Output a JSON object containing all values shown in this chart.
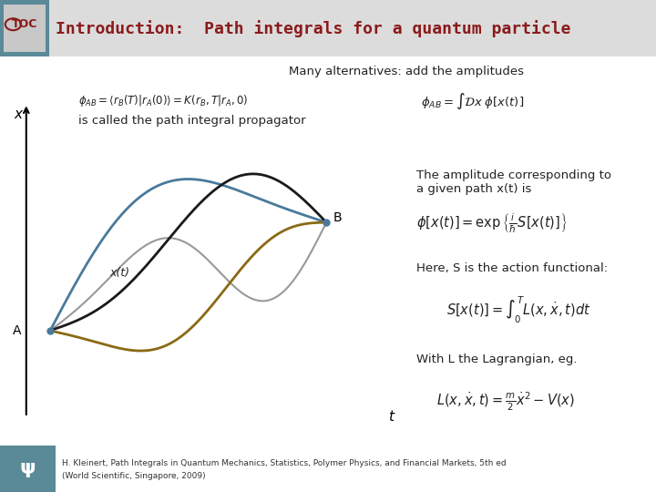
{
  "title": "Introduction:  Path integrals for a quantum particle",
  "title_color": "#8B1A1A",
  "bg_color": "#ffffff",
  "header_bar_color": "#4A7A8A",
  "header_bg_color": "#e8e8e8",
  "slide_bg": "#f0f0f0",
  "text_many": "Many alternatives: add the amplitudes",
  "text_xcaption": "x",
  "text_tcaption": "t",
  "text_xcurve": "x(t)",
  "text_A": "A",
  "text_B": "B",
  "text_propagator": "is called the path integral propagator",
  "text_amplitude": "The amplitude corresponding to\na given path x(t) is",
  "text_action": "Here, S is the action functional:",
  "text_lagrangian": "With L the Lagrangian, eg.",
  "footnote": "H. Kleinert, Path Integrals in Quantum Mechanics, Statistics, Polymer Physics, and Financial Markets, 5th ed\n(World Scientific, Singapore, 2009)",
  "curve1_color": "#4A7A9B",
  "curve2_color": "#1a1a1a",
  "curve3_color": "#8B6914",
  "curve4_color": "#888888",
  "point_A": [
    0.05,
    0.42
  ],
  "point_B": [
    0.88,
    0.62
  ]
}
